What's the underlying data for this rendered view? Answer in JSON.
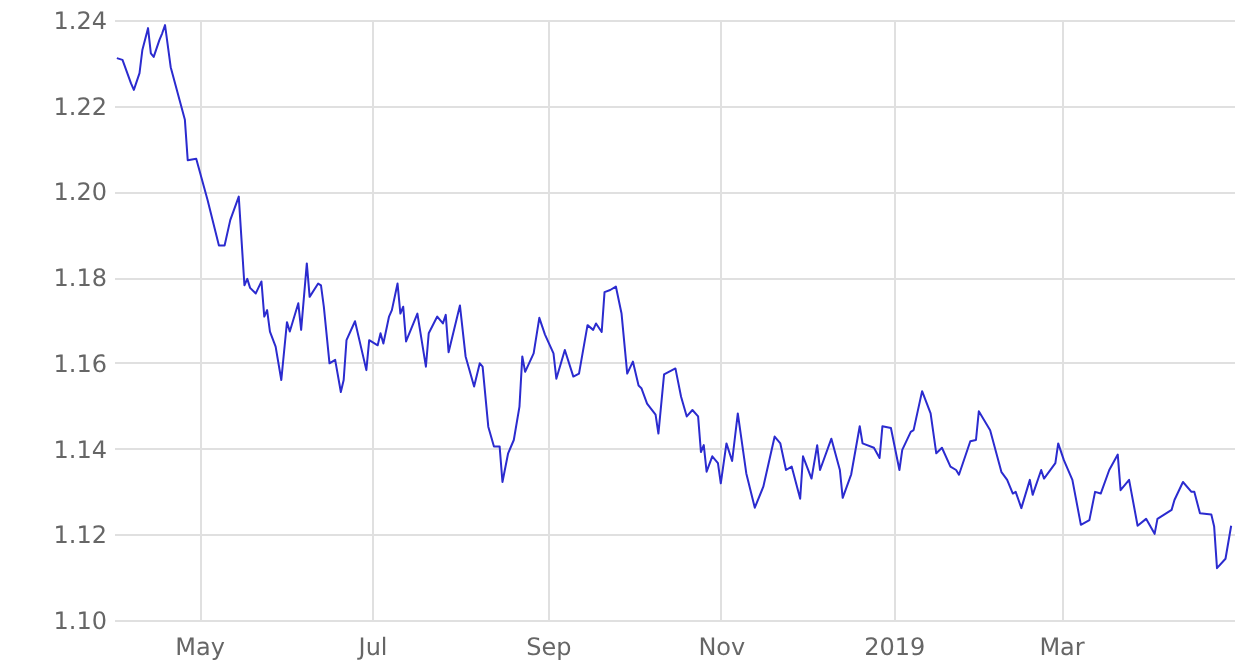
{
  "chart_data": {
    "type": "line",
    "grid": true,
    "xlim": [
      "2018-04-01",
      "2019-05-01"
    ],
    "ylim": [
      1.1,
      1.24
    ],
    "xticks": [
      {
        "value": "2018-05-01",
        "label": "May"
      },
      {
        "value": "2018-07-01",
        "label": "Jul"
      },
      {
        "value": "2018-09-01",
        "label": "Sep"
      },
      {
        "value": "2018-11-01",
        "label": "Nov"
      },
      {
        "value": "2019-01-01",
        "label": "2019"
      },
      {
        "value": "2019-03-01",
        "label": "Mar"
      }
    ],
    "yticks": [
      {
        "value": 1.1,
        "label": "1.10"
      },
      1.12,
      1.14,
      1.16,
      1.18,
      {
        "value": 1.2,
        "label": "1.20"
      },
      1.22,
      1.24
    ],
    "x": [
      "2018-04-02",
      "2018-04-04",
      "2018-04-07",
      "2018-04-08",
      "2018-04-10",
      "2018-04-11",
      "2018-04-13",
      "2018-04-14",
      "2018-04-15",
      "2018-04-17",
      "2018-04-18",
      "2018-04-19",
      "2018-04-21",
      "2018-04-26",
      "2018-04-27",
      "2018-04-30",
      "2018-05-04",
      "2018-05-08",
      "2018-05-10",
      "2018-05-12",
      "2018-05-15",
      "2018-05-17",
      "2018-05-18",
      "2018-05-19",
      "2018-05-21",
      "2018-05-23",
      "2018-05-24",
      "2018-05-25",
      "2018-05-26",
      "2018-05-28",
      "2018-05-30",
      "2018-06-01",
      "2018-06-02",
      "2018-06-05",
      "2018-06-06",
      "2018-06-08",
      "2018-06-09",
      "2018-06-12",
      "2018-06-13",
      "2018-06-14",
      "2018-06-16",
      "2018-06-18",
      "2018-06-20",
      "2018-06-21",
      "2018-06-22",
      "2018-06-25",
      "2018-06-29",
      "2018-06-30",
      "2018-07-03",
      "2018-07-04",
      "2018-07-05",
      "2018-07-07",
      "2018-07-08",
      "2018-07-10",
      "2018-07-11",
      "2018-07-12",
      "2018-07-13",
      "2018-07-17",
      "2018-07-20",
      "2018-07-21",
      "2018-07-24",
      "2018-07-26",
      "2018-07-27",
      "2018-07-28",
      "2018-08-01",
      "2018-08-03",
      "2018-08-06",
      "2018-08-08",
      "2018-08-09",
      "2018-08-11",
      "2018-08-13",
      "2018-08-15",
      "2018-08-16",
      "2018-08-18",
      "2018-08-20",
      "2018-08-22",
      "2018-08-23",
      "2018-08-24",
      "2018-08-27",
      "2018-08-29",
      "2018-08-31",
      "2018-09-03",
      "2018-09-04",
      "2018-09-07",
      "2018-09-10",
      "2018-09-12",
      "2018-09-15",
      "2018-09-17",
      "2018-09-18",
      "2018-09-20",
      "2018-09-21",
      "2018-09-23",
      "2018-09-25",
      "2018-09-27",
      "2018-09-29",
      "2018-10-01",
      "2018-10-03",
      "2018-10-04",
      "2018-10-06",
      "2018-10-09",
      "2018-10-10",
      "2018-10-12",
      "2018-10-16",
      "2018-10-18",
      "2018-10-20",
      "2018-10-22",
      "2018-10-24",
      "2018-10-25",
      "2018-10-26",
      "2018-10-27",
      "2018-10-29",
      "2018-10-31",
      "2018-11-01",
      "2018-11-03",
      "2018-11-05",
      "2018-11-07",
      "2018-11-10",
      "2018-11-13",
      "2018-11-16",
      "2018-11-20",
      "2018-11-22",
      "2018-11-24",
      "2018-11-26",
      "2018-11-29",
      "2018-11-30",
      "2018-12-03",
      "2018-12-05",
      "2018-12-06",
      "2018-12-10",
      "2018-12-13",
      "2018-12-14",
      "2018-12-17",
      "2018-12-20",
      "2018-12-21",
      "2018-12-25",
      "2018-12-27",
      "2018-12-28",
      "2018-12-31",
      "2019-01-03",
      "2019-01-04",
      "2019-01-07",
      "2019-01-08",
      "2019-01-11",
      "2019-01-14",
      "2019-01-16",
      "2019-01-18",
      "2019-01-21",
      "2019-01-23",
      "2019-01-24",
      "2019-01-28",
      "2019-01-30",
      "2019-01-31",
      "2019-02-04",
      "2019-02-08",
      "2019-02-10",
      "2019-02-12",
      "2019-02-13",
      "2019-02-15",
      "2019-02-18",
      "2019-02-19",
      "2019-02-22",
      "2019-02-23",
      "2019-02-27",
      "2019-02-28",
      "2019-03-02",
      "2019-03-05",
      "2019-03-08",
      "2019-03-11",
      "2019-03-13",
      "2019-03-15",
      "2019-03-18",
      "2019-03-21",
      "2019-03-22",
      "2019-03-25",
      "2019-03-28",
      "2019-03-31",
      "2019-04-03",
      "2019-04-04",
      "2019-04-09",
      "2019-04-10",
      "2019-04-13",
      "2019-04-16",
      "2019-04-17",
      "2019-04-19",
      "2019-04-23",
      "2019-04-24",
      "2019-04-25",
      "2019-04-28",
      "2019-04-30"
    ],
    "series": [
      {
        "color": "#2b2bcf",
        "values": [
          1.2311,
          1.2307,
          1.2252,
          1.2237,
          1.2276,
          1.233,
          1.2381,
          1.2322,
          1.2314,
          1.2353,
          1.2369,
          1.2388,
          1.229,
          1.2167,
          1.2073,
          1.2076,
          1.198,
          1.1874,
          1.1874,
          1.1933,
          1.1988,
          1.1781,
          1.1796,
          1.1775,
          1.1762,
          1.179,
          1.1708,
          1.1723,
          1.1673,
          1.1638,
          1.156,
          1.1695,
          1.1673,
          1.1739,
          1.1677,
          1.1832,
          1.1754,
          1.1785,
          1.1781,
          1.1731,
          1.1599,
          1.1607,
          1.1532,
          1.156,
          1.1653,
          1.1697,
          1.1583,
          1.1653,
          1.1641,
          1.1669,
          1.1645,
          1.1708,
          1.1723,
          1.1785,
          1.1715,
          1.1731,
          1.165,
          1.1715,
          1.1591,
          1.1669,
          1.1708,
          1.1692,
          1.1712,
          1.1625,
          1.1734,
          1.1615,
          1.1545,
          1.1599,
          1.1591,
          1.1451,
          1.1405,
          1.1405,
          1.1322,
          1.1389,
          1.142,
          1.1498,
          1.1615,
          1.1579,
          1.1622,
          1.1705,
          1.1666,
          1.1622,
          1.1563,
          1.163,
          1.1568,
          1.1575,
          1.1688,
          1.1677,
          1.1692,
          1.1672,
          1.1765,
          1.177,
          1.1778,
          1.1715,
          1.1575,
          1.1603,
          1.1547,
          1.1541,
          1.1505,
          1.1479,
          1.1435,
          1.1573,
          1.1587,
          1.1521,
          1.1475,
          1.149,
          1.1475,
          1.1392,
          1.1408,
          1.1346,
          1.1382,
          1.1366,
          1.1319,
          1.1412,
          1.1371,
          1.1482,
          1.1342,
          1.1262,
          1.1311,
          1.1428,
          1.1412,
          1.135,
          1.1358,
          1.1283,
          1.1382,
          1.133,
          1.1408,
          1.135,
          1.1423,
          1.135,
          1.1285,
          1.134,
          1.1452,
          1.1412,
          1.1402,
          1.1378,
          1.1452,
          1.1448,
          1.135,
          1.1397,
          1.1439,
          1.1443,
          1.1534,
          1.1482,
          1.1389,
          1.1402,
          1.1358,
          1.135,
          1.1339,
          1.1417,
          1.142,
          1.1487,
          1.1443,
          1.1345,
          1.1327,
          1.1295,
          1.1299,
          1.1261,
          1.1327,
          1.1292,
          1.135,
          1.133,
          1.1366,
          1.1412,
          1.1373,
          1.1327,
          1.1222,
          1.1233,
          1.1299,
          1.1295,
          1.135,
          1.1386,
          1.1303,
          1.1327,
          1.122,
          1.1236,
          1.1201,
          1.1236,
          1.1257,
          1.128,
          1.1322,
          1.1299,
          1.1299,
          1.1249,
          1.1246,
          1.1218,
          1.1121,
          1.1143,
          1.122
        ]
      }
    ]
  }
}
